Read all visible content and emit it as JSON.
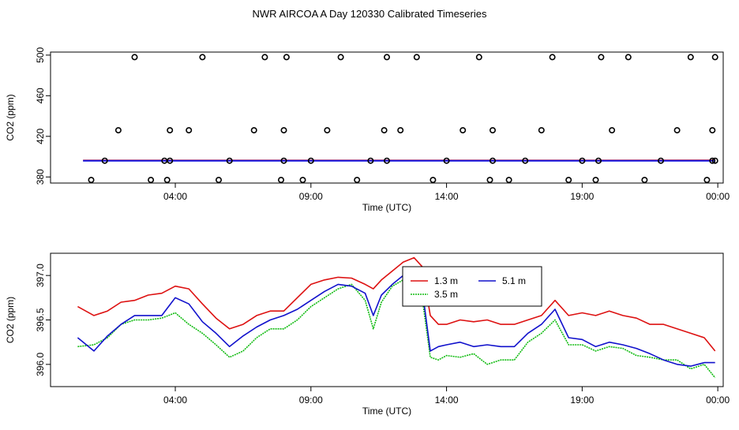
{
  "title": "NWR AIRCOA A  Day 120330  Calibrated Timeseries",
  "chart_data": [
    {
      "type": "scatter",
      "xlabel": "Time (UTC)",
      "ylabel": "CO2 (ppm)",
      "x_ticks": [
        {
          "value": 4,
          "label": "04:00"
        },
        {
          "value": 9,
          "label": "09:00"
        },
        {
          "value": 14,
          "label": "14:00"
        },
        {
          "value": 19,
          "label": "19:00"
        },
        {
          "value": 24,
          "label": "00:00"
        }
      ],
      "y_ticks": [
        380,
        420,
        460,
        500
      ],
      "xlim": [
        -0.6,
        24.2
      ],
      "ylim": [
        374,
        503
      ],
      "lines": [
        {
          "color": "#dd1111",
          "x": [
            0.6,
            23.9
          ],
          "y": [
            396.2,
            396.3
          ]
        },
        {
          "color": "#1111dd",
          "x": [
            0.6,
            23.9
          ],
          "y": [
            396.0,
            396.0
          ]
        }
      ],
      "markers": {
        "x": [
          0.9,
          1.4,
          1.9,
          2.5,
          3.1,
          3.6,
          3.7,
          3.8,
          3.8,
          4.5,
          5.0,
          5.6,
          6.0,
          6.9,
          7.3,
          7.9,
          8.0,
          8.0,
          8.1,
          8.7,
          9.0,
          9.6,
          10.1,
          10.7,
          11.2,
          11.7,
          11.8,
          11.8,
          12.3,
          12.9,
          13.5,
          14.0,
          14.6,
          15.2,
          15.6,
          15.7,
          15.7,
          16.3,
          16.9,
          17.5,
          17.9,
          18.5,
          19.0,
          19.5,
          19.6,
          19.7,
          20.1,
          20.7,
          21.3,
          21.9,
          22.5,
          23.0,
          23.6,
          23.8,
          23.8,
          23.9,
          23.9
        ],
        "y": [
          377,
          396,
          426,
          498,
          377,
          396,
          377,
          396,
          426,
          426,
          498,
          377,
          396,
          426,
          498,
          377,
          396,
          426,
          498,
          377,
          396,
          426,
          498,
          377,
          396,
          426,
          498,
          396,
          426,
          498,
          377,
          396,
          426,
          498,
          377,
          396,
          426,
          377,
          396,
          426,
          498,
          377,
          396,
          377,
          396,
          498,
          426,
          498,
          377,
          396,
          426,
          498,
          377,
          396,
          426,
          498,
          396
        ],
        "color": "#000000"
      }
    },
    {
      "type": "line",
      "xlabel": "Time (UTC)",
      "ylabel": "CO2 (ppm)",
      "x_ticks": [
        {
          "value": 4,
          "label": "04:00"
        },
        {
          "value": 9,
          "label": "09:00"
        },
        {
          "value": 14,
          "label": "14:00"
        },
        {
          "value": 19,
          "label": "19:00"
        },
        {
          "value": 24,
          "label": "00:00"
        }
      ],
      "y_ticks": [
        {
          "value": 396.0,
          "label": "396.0"
        },
        {
          "value": 396.5,
          "label": "396.5"
        },
        {
          "value": 397.0,
          "label": "397.0"
        }
      ],
      "xlim": [
        -0.6,
        24.2
      ],
      "ylim": [
        395.75,
        397.25
      ],
      "x": [
        0.4,
        1.0,
        1.5,
        2.0,
        2.5,
        3.0,
        3.5,
        4.0,
        4.5,
        5.0,
        5.5,
        6.0,
        6.5,
        7.0,
        7.5,
        8.0,
        8.5,
        9.0,
        9.5,
        10.0,
        10.5,
        11.0,
        11.3,
        11.6,
        12.0,
        12.4,
        12.8,
        13.1,
        13.4,
        13.7,
        14.0,
        14.5,
        15.0,
        15.5,
        16.0,
        16.5,
        17.0,
        17.5,
        18.0,
        18.5,
        19.0,
        19.5,
        20.0,
        20.5,
        21.0,
        21.5,
        22.0,
        22.5,
        23.0,
        23.5,
        23.9
      ],
      "series": [
        {
          "name": "1.3 m",
          "color": "#dd1111",
          "y": [
            396.65,
            396.55,
            396.6,
            396.7,
            396.72,
            396.78,
            396.8,
            396.88,
            396.85,
            396.68,
            396.52,
            396.4,
            396.45,
            396.55,
            396.6,
            396.6,
            396.75,
            396.9,
            396.95,
            396.98,
            396.97,
            396.9,
            396.85,
            396.95,
            397.05,
            397.15,
            397.2,
            397.1,
            396.55,
            396.45,
            396.45,
            396.5,
            396.48,
            396.5,
            396.45,
            396.45,
            396.5,
            396.55,
            396.72,
            396.55,
            396.58,
            396.55,
            396.6,
            396.55,
            396.52,
            396.45,
            396.45,
            396.4,
            396.35,
            396.3,
            396.15
          ]
        },
        {
          "name": "3.5 m",
          "color": "#11bb11",
          "y": [
            396.2,
            396.22,
            396.3,
            396.45,
            396.5,
            396.5,
            396.52,
            396.58,
            396.45,
            396.35,
            396.22,
            396.08,
            396.15,
            396.3,
            396.4,
            396.4,
            396.5,
            396.65,
            396.75,
            396.85,
            396.9,
            396.72,
            396.4,
            396.7,
            396.88,
            396.95,
            396.9,
            396.75,
            396.08,
            396.05,
            396.1,
            396.08,
            396.12,
            396.0,
            396.05,
            396.05,
            396.25,
            396.35,
            396.5,
            396.22,
            396.22,
            396.15,
            396.2,
            396.18,
            396.1,
            396.08,
            396.05,
            396.05,
            395.95,
            396.0,
            395.85
          ]
        },
        {
          "name": "5.1 m",
          "color": "#1111cc",
          "y": [
            396.3,
            396.15,
            396.32,
            396.45,
            396.55,
            396.55,
            396.55,
            396.75,
            396.68,
            396.48,
            396.35,
            396.2,
            396.32,
            396.42,
            396.5,
            396.55,
            396.62,
            396.72,
            396.82,
            396.9,
            396.88,
            396.8,
            396.55,
            396.78,
            396.9,
            397.0,
            396.98,
            396.85,
            396.15,
            396.2,
            396.22,
            396.25,
            396.2,
            396.22,
            396.2,
            396.2,
            396.35,
            396.45,
            396.62,
            396.3,
            396.28,
            396.2,
            396.25,
            396.22,
            396.18,
            396.12,
            396.05,
            396.0,
            395.98,
            396.02,
            396.02
          ]
        }
      ],
      "legend": {
        "placement": "top-center",
        "entries": [
          "1.3 m",
          "5.1 m",
          "3.5 m"
        ]
      }
    }
  ]
}
